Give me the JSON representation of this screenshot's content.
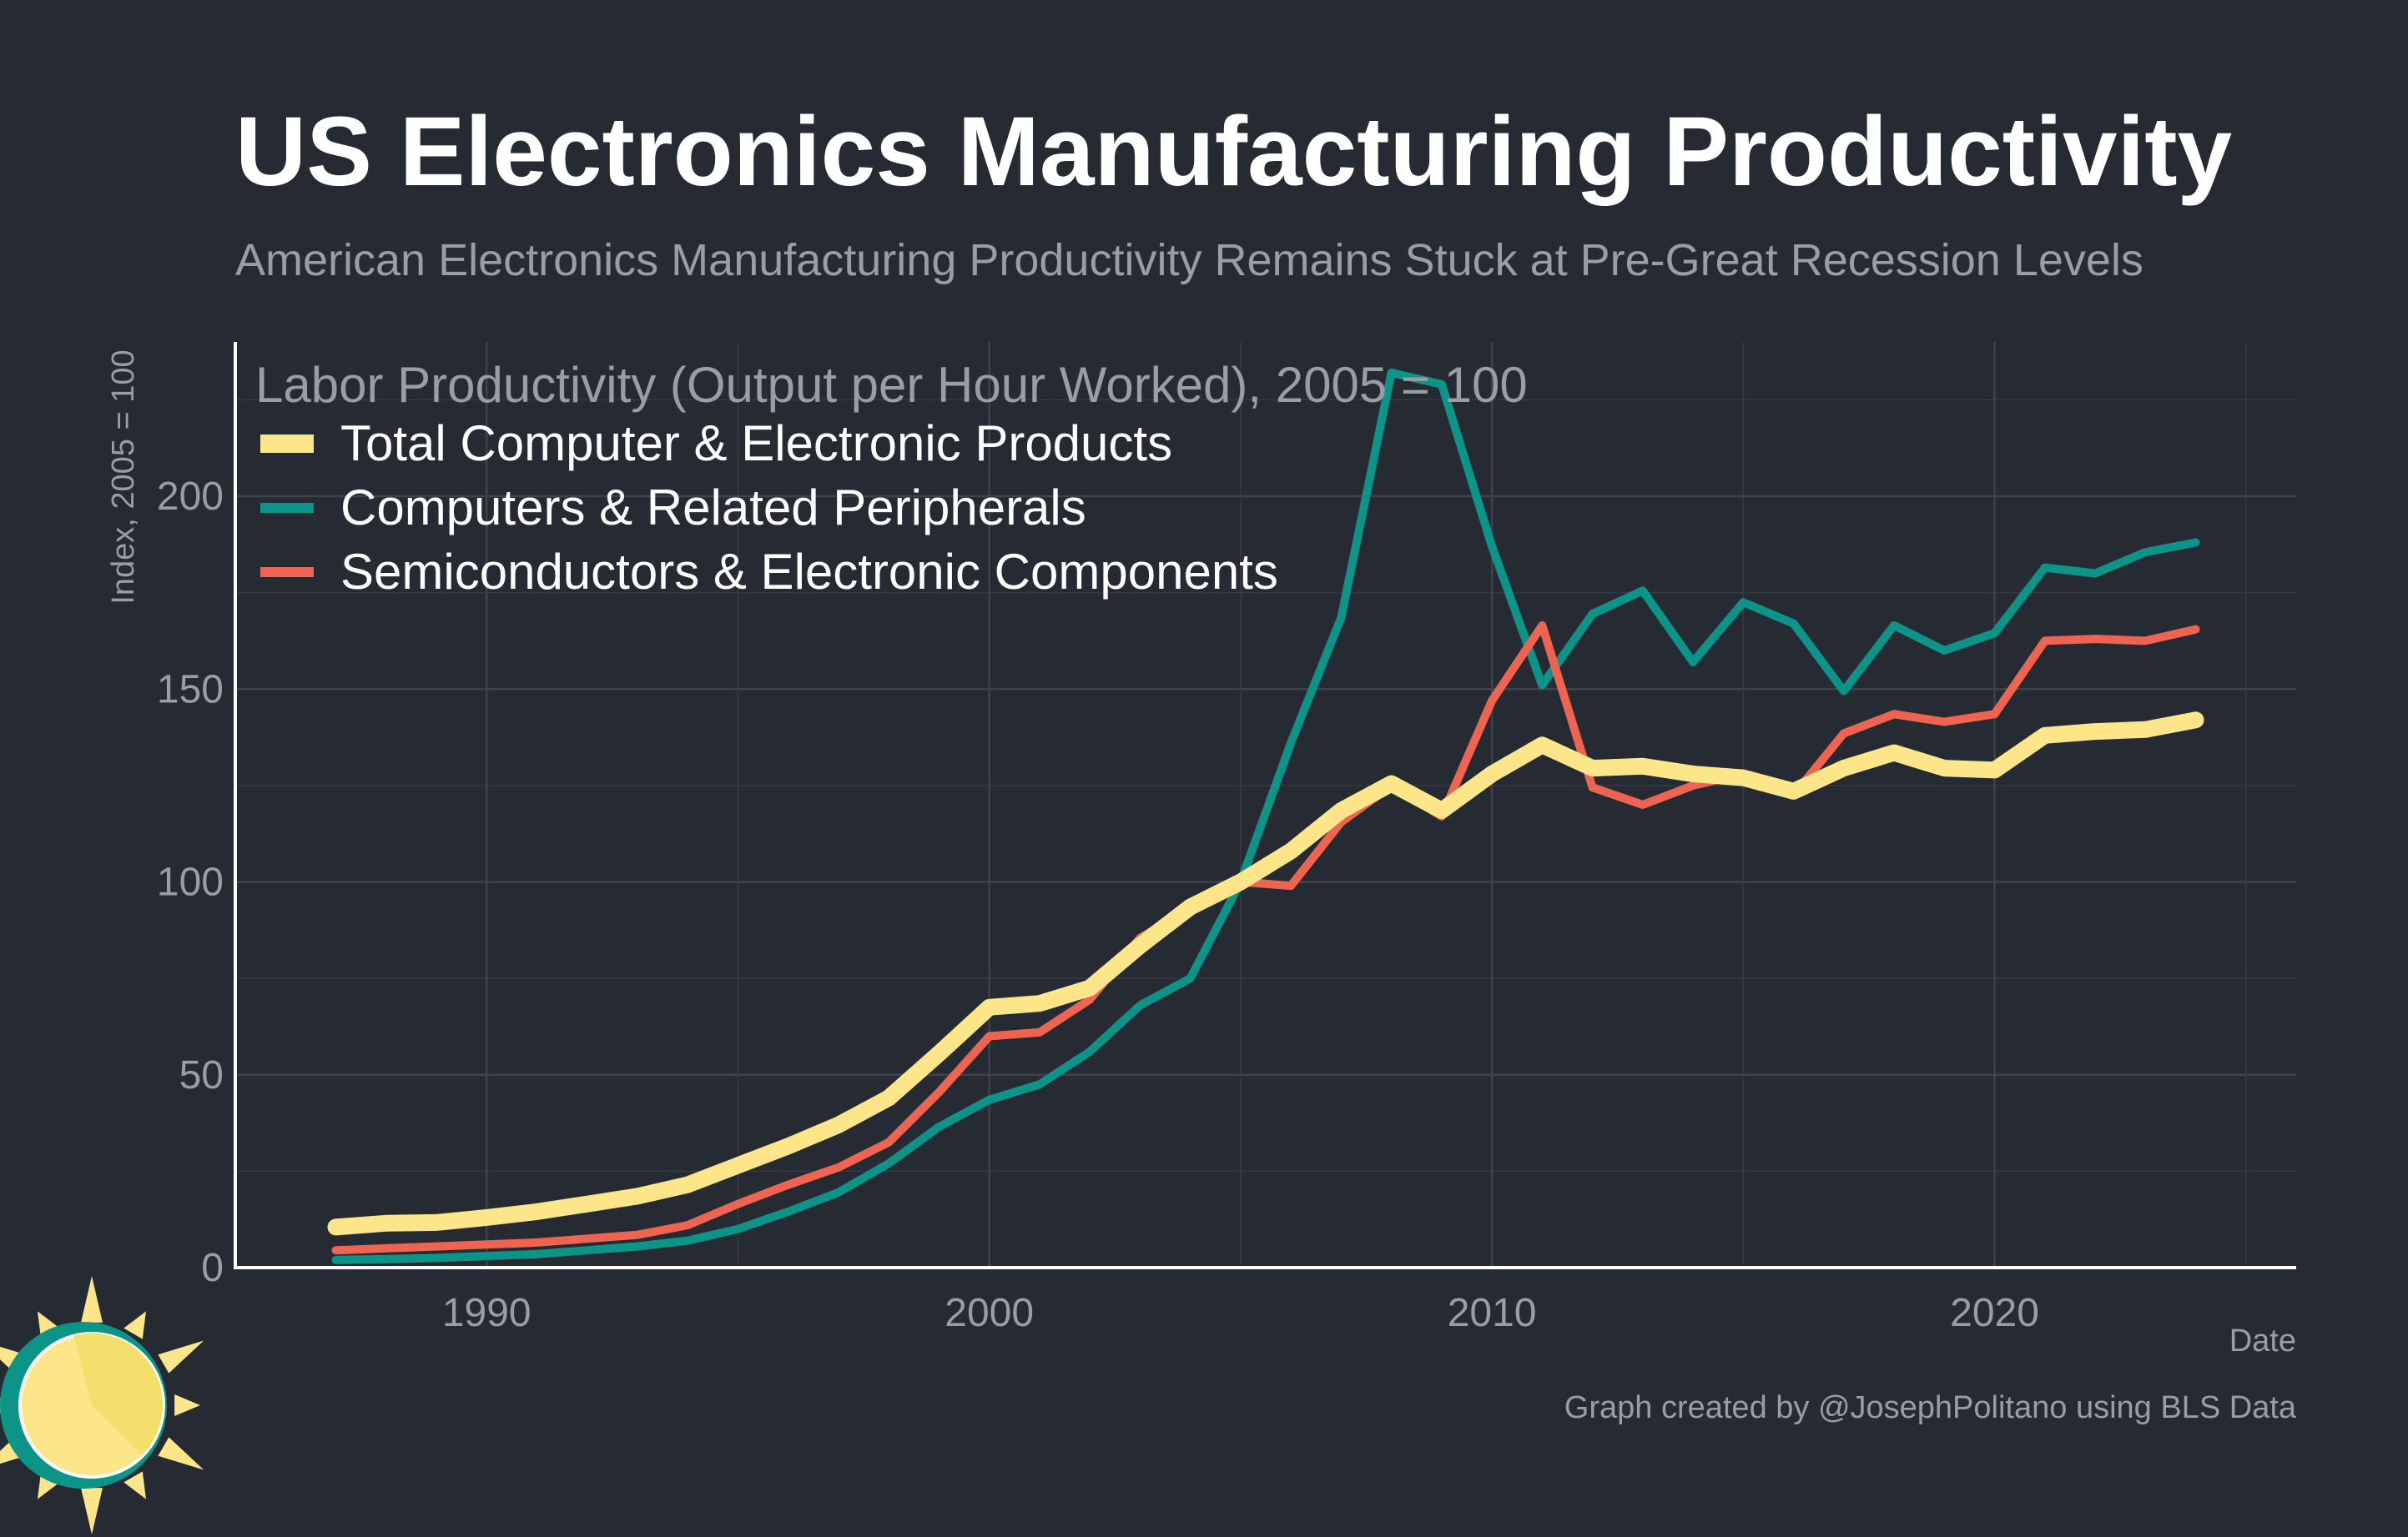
{
  "chart_data": {
    "type": "line",
    "title": "US Electronics Manufacturing Productivity",
    "subtitle": "American Electronics Manufacturing Productivity Remains Stuck at Pre-Great Recession Levels",
    "inner_title": "Labor Productivity (Output per Hour Worked), 2005 = 100",
    "xlabel": "Date",
    "ylabel": "Index, 2005 = 100",
    "caption": "Graph created by @JosephPolitano using BLS Data",
    "xlim": [
      1985,
      2026
    ],
    "ylim": [
      0,
      240
    ],
    "x_ticks": [
      1990,
      2000,
      2010,
      2020
    ],
    "y_ticks": [
      0,
      50,
      100,
      150,
      200
    ],
    "grid": true,
    "legend_position": "top-left",
    "x": [
      1987,
      1988,
      1989,
      1990,
      1991,
      1992,
      1993,
      1994,
      1995,
      1996,
      1997,
      1998,
      1999,
      2000,
      2001,
      2002,
      2003,
      2004,
      2005,
      2006,
      2007,
      2008,
      2009,
      2010,
      2011,
      2012,
      2013,
      2014,
      2015,
      2016,
      2017,
      2018,
      2019,
      2020,
      2021,
      2022,
      2023,
      2024
    ],
    "series": [
      {
        "name": "Total Computer & Electronic Products",
        "color": "#fde68a",
        "values": [
          10.5,
          11.5,
          11.7,
          13,
          14.5,
          16.5,
          18.5,
          21.5,
          26.5,
          31.5,
          37,
          44,
          55.5,
          67.5,
          68.5,
          72.5,
          83.5,
          93.5,
          100,
          108,
          118.5,
          125.5,
          118.5,
          128,
          135.5,
          129.5,
          130,
          128,
          127,
          123.5,
          129.5,
          133.5,
          129.5,
          129,
          138,
          139,
          139.5,
          142
        ]
      },
      {
        "name": "Computers & Related Peripherals",
        "color": "#0d9488",
        "values": [
          2,
          2.2,
          2.5,
          3,
          3.5,
          4.5,
          5.5,
          7,
          10,
          14.5,
          19.5,
          27,
          36.5,
          43.5,
          47.5,
          56,
          68,
          75,
          100,
          136,
          168.5,
          232,
          229,
          187,
          151,
          169.5,
          175.5,
          157,
          172.5,
          167,
          149.5,
          166.5,
          160,
          164.5,
          181.5,
          180,
          185.5,
          188
        ]
      },
      {
        "name": "Semiconductors & Electronic Components",
        "color": "#ef6351",
        "values": [
          4.5,
          5,
          5.5,
          6,
          6.5,
          7.5,
          8.5,
          11,
          16.5,
          21.5,
          26,
          32.5,
          45.5,
          60,
          61,
          69.5,
          85.5,
          93,
          100,
          99,
          115.5,
          125,
          117,
          147,
          166.5,
          124.5,
          120,
          125,
          128,
          122.5,
          138.5,
          143.5,
          141.5,
          143.5,
          162.5,
          163,
          162.5,
          165.5
        ]
      }
    ]
  },
  "branding": {
    "logo": "sun-icon",
    "logo_colors": [
      "#fde68a",
      "#f4de6c",
      "#0d9488"
    ]
  }
}
